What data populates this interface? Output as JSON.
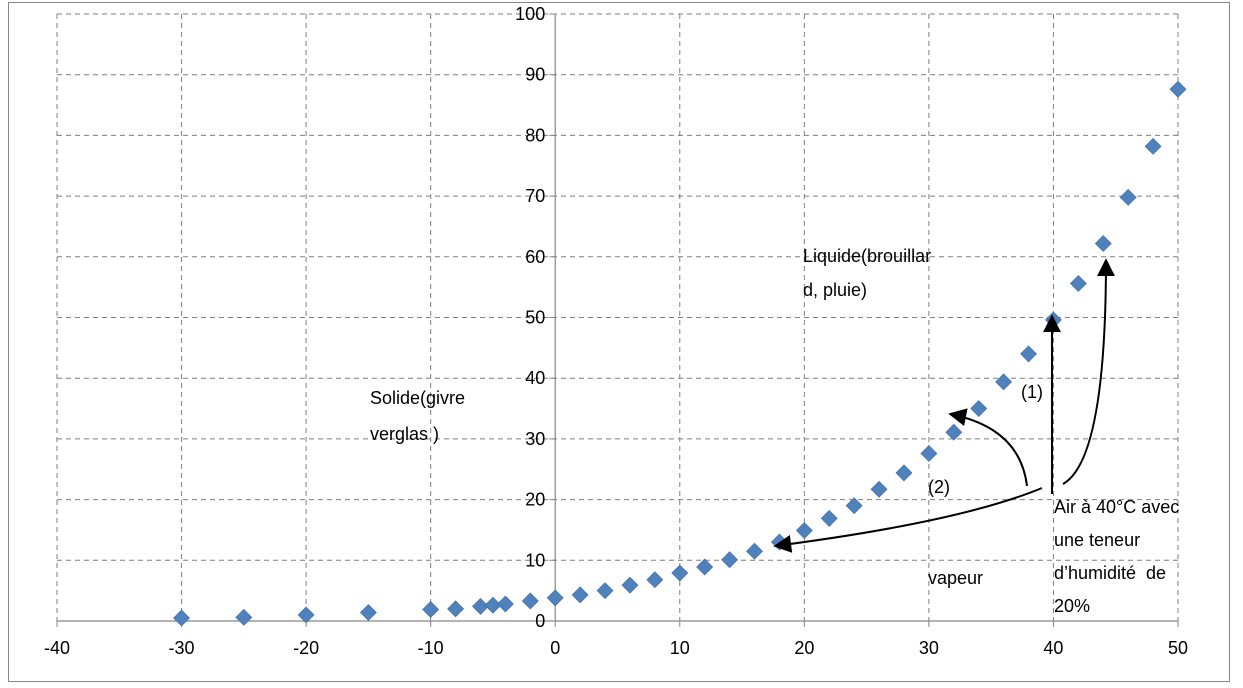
{
  "chart_data": {
    "type": "scatter",
    "title": "",
    "xlabel": "",
    "ylabel": "",
    "xlim": [
      -40,
      50
    ],
    "ylim": [
      0,
      100
    ],
    "x_ticks": [
      "-40",
      "-30",
      "-20",
      "-10",
      "0",
      "10",
      "20",
      "30",
      "40",
      "50"
    ],
    "y_ticks": [
      "0",
      "10",
      "20",
      "30",
      "40",
      "50",
      "60",
      "70",
      "80",
      "90",
      "100"
    ],
    "grid": true,
    "legend": "none",
    "marker_color": "#4F81BD",
    "series": [
      {
        "marker": "diamond",
        "points": [
          [
            -30,
            0.5
          ],
          [
            -25,
            0.6
          ],
          [
            -20,
            1.0
          ],
          [
            -15,
            1.4
          ],
          [
            -10,
            1.9
          ],
          [
            -8,
            2.0
          ],
          [
            -6,
            2.4
          ],
          [
            -5,
            2.6
          ],
          [
            -4,
            2.8
          ],
          [
            -2,
            3.3
          ],
          [
            0,
            3.8
          ],
          [
            2,
            4.3
          ],
          [
            4,
            5.0
          ],
          [
            6,
            5.9
          ],
          [
            8,
            6.8
          ],
          [
            10,
            7.9
          ],
          [
            12,
            8.9
          ],
          [
            14,
            10.1
          ],
          [
            16,
            11.5
          ],
          [
            18,
            13.0
          ],
          [
            20,
            14.9
          ],
          [
            22,
            16.9
          ],
          [
            24,
            19.0
          ],
          [
            26,
            21.7
          ],
          [
            28,
            24.4
          ],
          [
            30,
            27.6
          ],
          [
            32,
            31.1
          ],
          [
            34,
            35.0
          ],
          [
            36,
            39.4
          ],
          [
            38,
            44.0
          ],
          [
            40,
            49.6
          ],
          [
            42,
            55.6
          ],
          [
            44,
            62.2
          ],
          [
            46,
            69.8
          ],
          [
            48,
            78.2
          ],
          [
            50,
            87.6
          ]
        ]
      }
    ],
    "annotations": [
      {
        "id": "liquide",
        "lines": [
          "Liquide(brouillar",
          "d, pluie)"
        ]
      },
      {
        "id": "solide",
        "lines": [
          "Solide(givre",
          "verglas )"
        ]
      },
      {
        "id": "vapeur",
        "lines": [
          "vapeur"
        ]
      },
      {
        "id": "air",
        "lines": [
          "Air à 40°C avec",
          "une teneur",
          "d’humidité  de",
          "20%"
        ]
      },
      {
        "id": "label1",
        "lines": [
          "(1)"
        ]
      },
      {
        "id": "label2",
        "lines": [
          "(2)"
        ]
      }
    ]
  }
}
